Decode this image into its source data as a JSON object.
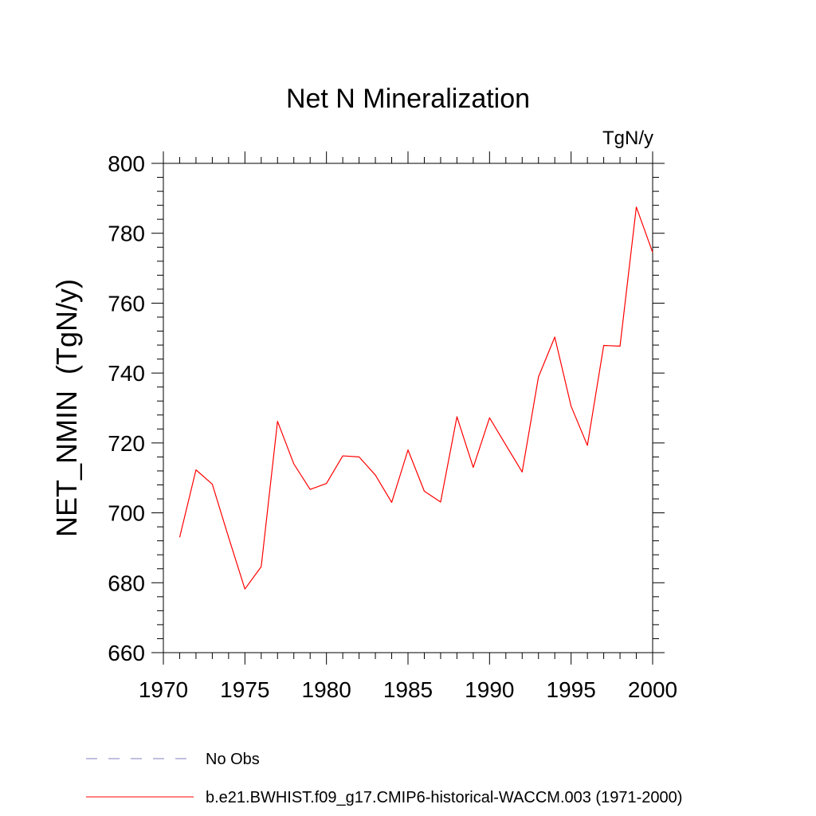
{
  "chart_data": {
    "type": "line",
    "title": "Net N Mineralization",
    "units_label": "TgN/y",
    "ylabel": "NET_NMIN  (TgN/y)",
    "xlabel": "",
    "xlim": [
      1970,
      2000
    ],
    "ylim": [
      660,
      800
    ],
    "x_major_ticks": [
      1970,
      1975,
      1980,
      1985,
      1990,
      1995,
      2000
    ],
    "y_major_ticks": [
      660,
      680,
      700,
      720,
      740,
      760,
      780,
      800
    ],
    "x_tick_labels": [
      "1970",
      "1975",
      "1980",
      "1985",
      "1990",
      "1995",
      "2000"
    ],
    "y_tick_labels": [
      "660",
      "680",
      "700",
      "720",
      "740",
      "760",
      "780",
      "800"
    ],
    "grid": false,
    "series": [
      {
        "name": "b.e21.BWHIST.f09_g17.CMIP6-historical-WACCM.003 (1971-2000)",
        "color": "#ff0000",
        "x": [
          1971,
          1972,
          1973,
          1974,
          1975,
          1976,
          1977,
          1978,
          1979,
          1980,
          1981,
          1982,
          1983,
          1984,
          1985,
          1986,
          1987,
          1988,
          1989,
          1990,
          1991,
          1992,
          1993,
          1994,
          1995,
          1996,
          1997,
          1998,
          1999,
          2000
        ],
        "values": [
          693.0,
          712.3,
          708.2,
          693.0,
          678.2,
          684.6,
          726.2,
          714.0,
          706.7,
          708.4,
          716.3,
          716.0,
          710.8,
          703.0,
          718.0,
          706.2,
          703.1,
          727.5,
          713.0,
          727.2,
          719.4,
          711.7,
          738.9,
          750.3,
          730.5,
          719.3,
          747.9,
          747.7,
          787.5,
          774.5
        ]
      }
    ],
    "legend": [
      {
        "label": "No Obs",
        "color": "#8080c0",
        "style": "dashed"
      },
      {
        "label": "b.e21.BWHIST.f09_g17.CMIP6-historical-WACCM.003 (1971-2000)",
        "color": "#ff0000",
        "style": "solid"
      }
    ],
    "legend_position": "bottom-left"
  }
}
